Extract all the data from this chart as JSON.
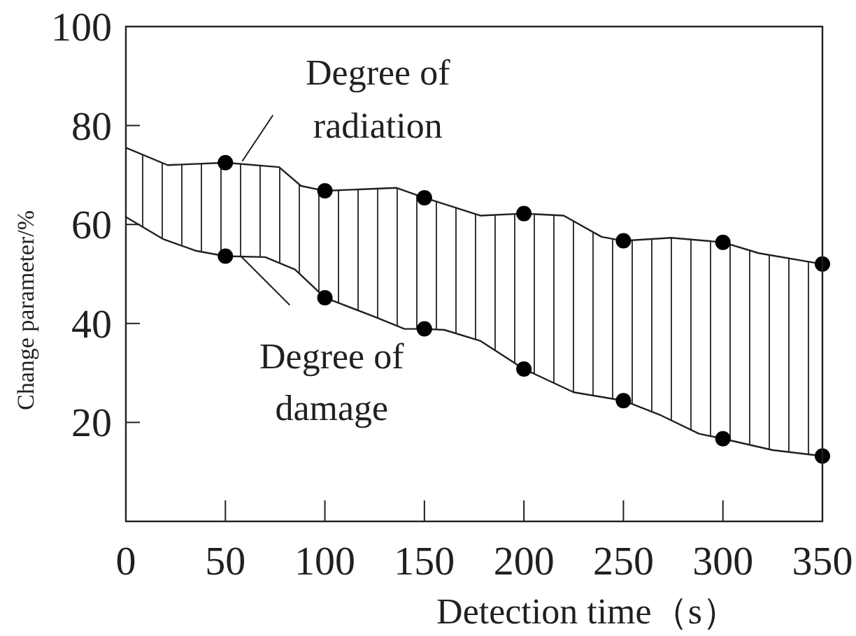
{
  "chart_data": {
    "type": "line",
    "xlabel": "Detection time（s）",
    "ylabel": "Change parameter/%",
    "xlim": [
      0,
      350
    ],
    "ylim": [
      0,
      100
    ],
    "xticks": [
      0,
      50,
      100,
      150,
      200,
      250,
      300,
      350
    ],
    "yticks": [
      20,
      40,
      60,
      80,
      100
    ],
    "grid": false,
    "series": [
      {
        "marker": "none",
        "color": "#231f20",
        "x": [
          0,
          21,
          50,
          77,
          88,
          100,
          136,
          150,
          178,
          200,
          220,
          239,
          250,
          274,
          300,
          318,
          350
        ],
        "values": [
          75.5,
          72,
          72.5,
          71.6,
          67.8,
          66.8,
          67.4,
          65.4,
          61.8,
          62.2,
          61.8,
          57.5,
          56.7,
          57.3,
          56.4,
          54.2,
          52.0
        ]
      },
      {
        "marker": "none",
        "color": "#231f20",
        "x": [
          0,
          19,
          35,
          50,
          70,
          85,
          100,
          124,
          140,
          150,
          160,
          178,
          200,
          225,
          250,
          269,
          288,
          300,
          325,
          350
        ],
        "values": [
          61.5,
          57,
          54.7,
          53.6,
          53.4,
          50.9,
          45.2,
          41.5,
          38.9,
          38.9,
          38.7,
          36.5,
          30.8,
          26.1,
          24.4,
          21.4,
          17.7,
          16.7,
          14.4,
          13.2
        ]
      },
      {
        "type": "scatter",
        "marker": "circle",
        "color": "#000000",
        "x": [
          50,
          100,
          150,
          200,
          250,
          300,
          350
        ],
        "values": [
          72.5,
          66.8,
          65.4,
          62.2,
          56.7,
          56.4,
          52.0
        ]
      },
      {
        "type": "scatter",
        "marker": "circle",
        "color": "#000000",
        "x": [
          50,
          100,
          150,
          200,
          250,
          300,
          350
        ],
        "values": [
          53.6,
          45.2,
          38.9,
          30.8,
          24.4,
          16.7,
          13.2
        ]
      }
    ],
    "annotations": [
      {
        "text": "Degree of radiation",
        "x": 50,
        "y": 72.5
      },
      {
        "text": "Degree of damage",
        "x": 50,
        "y": 53.6
      }
    ]
  }
}
